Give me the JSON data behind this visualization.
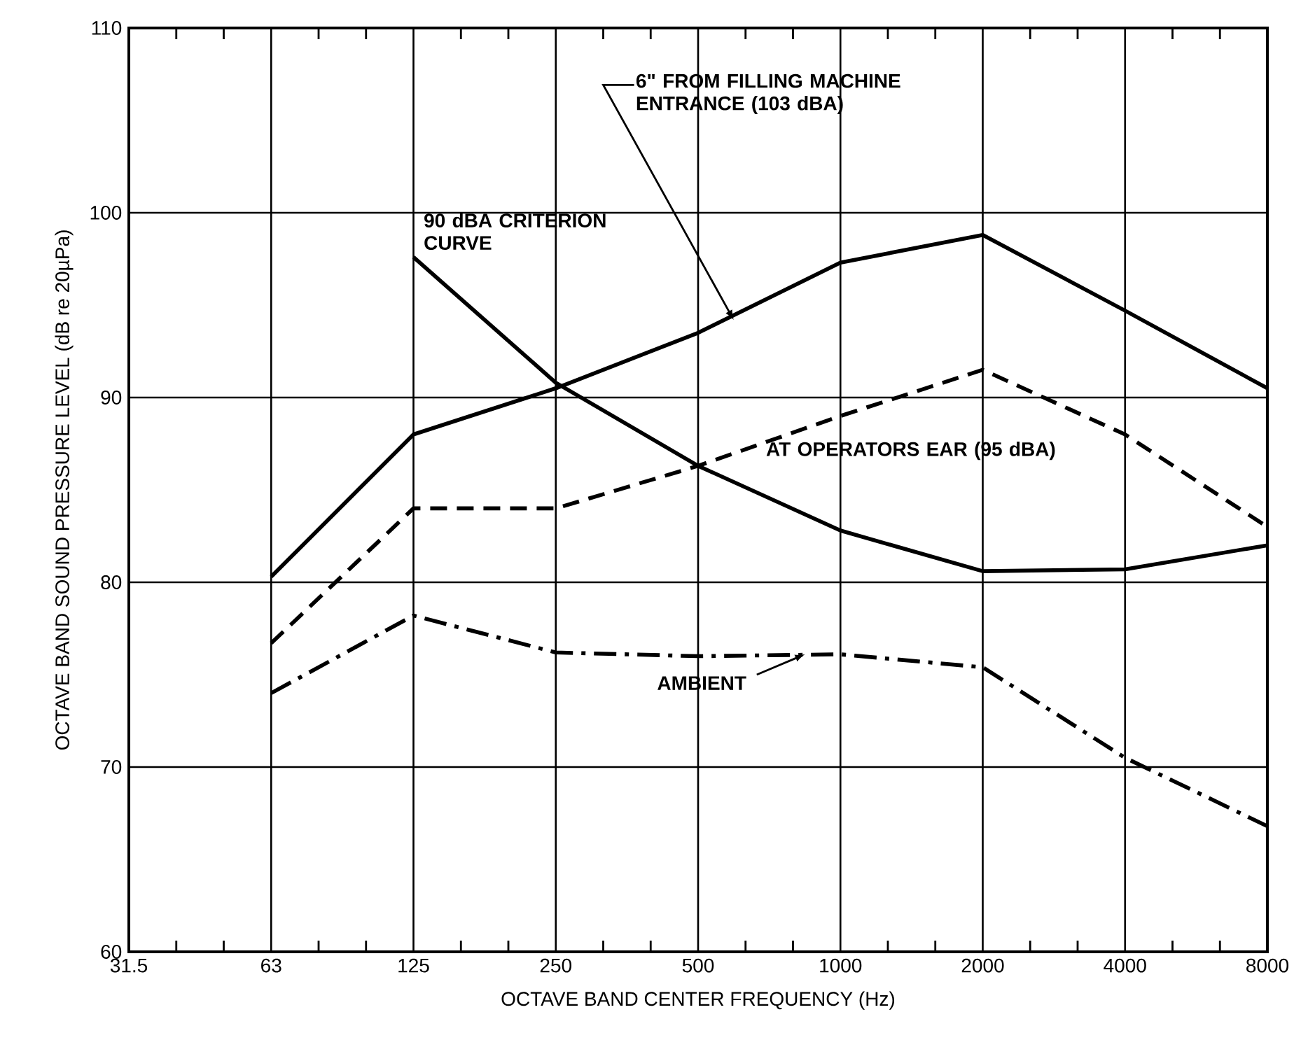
{
  "chart_data": {
    "type": "line",
    "xlabel": "OCTAVE BAND CENTER FREQUENCY (Hz)",
    "ylabel": "OCTAVE BAND SOUND PRESSURE LEVEL (dB re 20µPa)",
    "categories": [
      "31.5",
      "63",
      "125",
      "250",
      "500",
      "1000",
      "2000",
      "4000",
      "8000"
    ],
    "ylim": [
      60,
      110
    ],
    "yticks": [
      60,
      70,
      80,
      90,
      100,
      110
    ],
    "grid": true,
    "series": [
      {
        "name": "6\" FROM FILLING MACHINE ENTRANCE (103 dBA)",
        "color": "#000000",
        "line_style": "solid",
        "values": [
          null,
          80.3,
          88,
          90.5,
          93.5,
          97.3,
          98.8,
          94.7,
          90.5
        ]
      },
      {
        "name": "90 dBA CRITERION CURVE",
        "color": "#000000",
        "line_style": "solid",
        "values": [
          null,
          null,
          97.6,
          90.8,
          86.3,
          82.8,
          80.6,
          80.7,
          82
        ]
      },
      {
        "name": "AT OPERATORS EAR (95 dBA)",
        "color": "#000000",
        "line_style": "dashed",
        "values": [
          null,
          76.7,
          84,
          84,
          86.3,
          89,
          91.5,
          88,
          83
        ]
      },
      {
        "name": "AMBIENT",
        "color": "#000000",
        "line_style": "dashdot",
        "values": [
          null,
          74,
          78.2,
          76.2,
          76,
          76.1,
          75.4,
          70.5,
          66.8
        ]
      }
    ]
  }
}
